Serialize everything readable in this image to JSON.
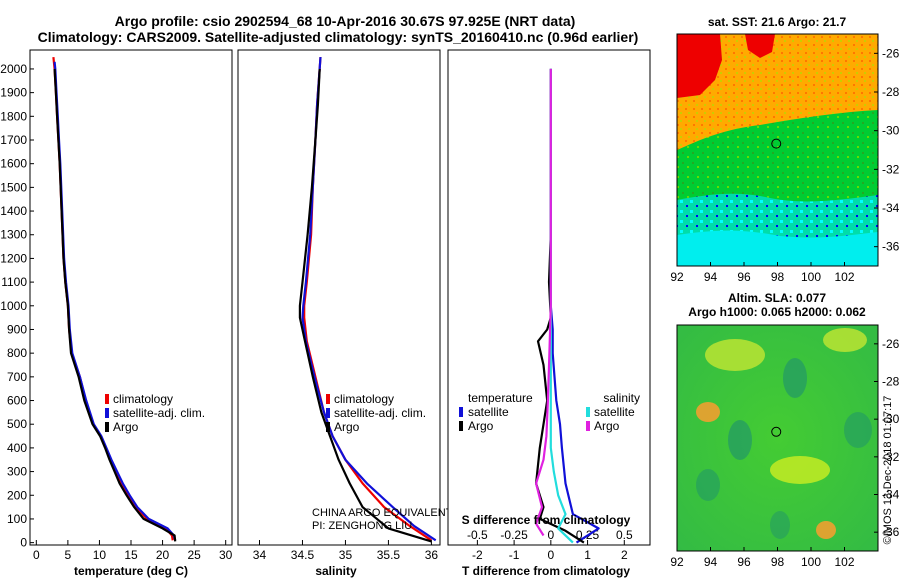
{
  "figure": {
    "title_line1": "Argo profile: csio 2902594_68 10-Apr-2016 30.67S 97.925E (NRT data)",
    "title_line2": "Climatology: CARS2009. Satellite-adjusted climatology: synTS_20160410.nc (0.96d earlier)",
    "credit": "©IMOS 13-Dec-2018 01:07:17",
    "program_line1": "CHINA ARGO EQUIVALENT",
    "program_line2": "PI: ZENGHONG LIU"
  },
  "colors": {
    "climatology": "#ee0000",
    "satellite": "#1010d8",
    "argo": "#000000",
    "sat_salinity": "#22dddd",
    "argo_salinity": "#e020e0"
  },
  "chart_data": [
    {
      "id": "temperature",
      "type": "line",
      "xlabel": "temperature (deg C)",
      "ylabel": "",
      "xlim": [
        -1,
        31
      ],
      "ylim": [
        2080,
        -10
      ],
      "xticks": [
        0,
        5,
        10,
        15,
        20,
        25,
        30
      ],
      "yticks": [
        0,
        100,
        200,
        300,
        400,
        500,
        600,
        700,
        800,
        900,
        1000,
        1100,
        1200,
        1300,
        1400,
        1500,
        1600,
        1700,
        1800,
        1900,
        2000
      ],
      "legend": [
        "climatology",
        "satellite-adj. clim.",
        "Argo"
      ],
      "series": [
        {
          "name": "climatology",
          "color_key": "climatology",
          "x": [
            21.6,
            21.5,
            20.5,
            17.5,
            15.8,
            14.6,
            13.5,
            12.6,
            11.8,
            11.0,
            10.2,
            9.0,
            7.8,
            6.9,
            5.6,
            5.2,
            5.0,
            4.6,
            4.3,
            4.0,
            3.7,
            3.5,
            3.3,
            3.1,
            2.9,
            2.7
          ],
          "y": [
            10,
            30,
            60,
            100,
            150,
            200,
            250,
            300,
            350,
            400,
            450,
            500,
            600,
            700,
            800,
            900,
            1000,
            1100,
            1200,
            1400,
            1600,
            1700,
            1800,
            1900,
            2000,
            2050
          ]
        },
        {
          "name": "satellite-adj. clim.",
          "color_key": "satellite",
          "x": [
            22.0,
            21.8,
            20.8,
            17.8,
            16.0,
            14.8,
            13.7,
            12.8,
            11.9,
            11.1,
            10.3,
            9.1,
            7.9,
            6.9,
            5.7,
            5.3,
            5.1,
            4.7,
            4.4,
            4.1,
            3.8,
            3.6,
            3.4,
            3.2,
            3.0,
            2.9
          ],
          "y": [
            10,
            30,
            60,
            100,
            150,
            200,
            250,
            300,
            350,
            400,
            450,
            500,
            600,
            700,
            800,
            900,
            1000,
            1100,
            1200,
            1400,
            1600,
            1700,
            1800,
            1900,
            2000,
            2030
          ]
        },
        {
          "name": "Argo",
          "color_key": "argo",
          "x": [
            22.0,
            21.9,
            20.0,
            17.0,
            15.5,
            14.3,
            13.2,
            12.4,
            11.6,
            10.9,
            10.1,
            8.9,
            7.6,
            6.7,
            5.5,
            5.2,
            5.0,
            4.6,
            4.3,
            4.0,
            3.7,
            3.5,
            3.3,
            3.1,
            2.9
          ],
          "y": [
            5,
            30,
            60,
            100,
            150,
            200,
            250,
            300,
            350,
            400,
            450,
            500,
            600,
            700,
            800,
            900,
            1000,
            1100,
            1200,
            1400,
            1600,
            1700,
            1800,
            1900,
            2000
          ]
        }
      ]
    },
    {
      "id": "salinity",
      "type": "line",
      "xlabel": "salinity",
      "xlim": [
        33.75,
        36.1
      ],
      "ylim": [
        2080,
        -10
      ],
      "xticks": [
        34,
        34.5,
        35,
        35.5,
        36
      ],
      "legend": [
        "climatology",
        "satellite-adj. clim.",
        "Argo"
      ],
      "series": [
        {
          "name": "climatology",
          "color_key": "climatology",
          "x": [
            36.0,
            35.75,
            35.45,
            35.2,
            35.0,
            34.85,
            34.75,
            34.65,
            34.55,
            34.52,
            34.52,
            34.55,
            34.6,
            34.62,
            34.65,
            34.67,
            34.69,
            34.71
          ],
          "y": [
            10,
            70,
            150,
            250,
            350,
            450,
            550,
            700,
            850,
            950,
            1000,
            1100,
            1300,
            1500,
            1700,
            1850,
            1950,
            2050
          ]
        },
        {
          "name": "satellite-adj. clim.",
          "color_key": "satellite",
          "x": [
            36.05,
            35.8,
            35.55,
            35.25,
            35.0,
            34.85,
            34.75,
            34.64,
            34.54,
            34.5,
            34.51,
            34.54,
            34.59,
            34.62,
            34.65,
            34.67,
            34.69,
            34.71
          ],
          "y": [
            10,
            70,
            150,
            250,
            350,
            450,
            550,
            700,
            850,
            950,
            1000,
            1100,
            1300,
            1500,
            1700,
            1850,
            1950,
            2050
          ]
        },
        {
          "name": "Argo",
          "color_key": "argo",
          "x": [
            36.0,
            35.5,
            35.2,
            35.05,
            34.92,
            34.82,
            34.72,
            34.62,
            34.53,
            34.47,
            34.47,
            34.5,
            34.56,
            34.61,
            34.65,
            34.68,
            34.7
          ],
          "y": [
            5,
            60,
            150,
            250,
            350,
            450,
            550,
            700,
            850,
            950,
            1000,
            1100,
            1300,
            1500,
            1700,
            1850,
            2000
          ]
        }
      ]
    },
    {
      "id": "difference",
      "type": "line",
      "xlabel": "T difference from climatology",
      "xlabel2": "S difference from climatology",
      "xlim": [
        -2.8,
        2.7
      ],
      "ylim": [
        2080,
        -10
      ],
      "xticks": [
        -2,
        -1,
        0,
        1,
        2
      ],
      "xticks2": [
        -0.5,
        -0.25,
        0,
        0.25,
        0.5
      ],
      "x2lim": [
        -0.7,
        0.675
      ],
      "legend_left_title": "temperature",
      "legend_right_title": "salinity",
      "legend_left": [
        "satellite",
        "Argo"
      ],
      "legend_right": [
        "satellite",
        "Argo"
      ],
      "series": [
        {
          "name": "T satellite",
          "color_key": "satellite",
          "axis": "T",
          "x": [
            0.7,
            1.3,
            0.6,
            0.4,
            0.3,
            0.25,
            0.15,
            0.1,
            0.05,
            0.05,
            0.0,
            0.0,
            0.0,
            0.0,
            0.0,
            0.0
          ],
          "y": [
            0,
            60,
            120,
            250,
            400,
            500,
            600,
            700,
            800,
            900,
            1000,
            1200,
            1400,
            1600,
            1800,
            2000
          ]
        },
        {
          "name": "T Argo",
          "color_key": "argo",
          "axis": "T",
          "x": [
            0.9,
            0.4,
            -0.3,
            -0.2,
            -0.4,
            -0.3,
            -0.1,
            -0.2,
            -0.35,
            -0.1,
            0.0,
            -0.05,
            0.0,
            0.0,
            0.0,
            0.0
          ],
          "y": [
            0,
            50,
            100,
            150,
            250,
            400,
            600,
            750,
            850,
            900,
            950,
            1100,
            1300,
            1500,
            1800,
            2000
          ]
        },
        {
          "name": "S satellite",
          "color_key": "sat_salinity",
          "axis": "S",
          "x": [
            0.15,
            0.05,
            0.1,
            0.05,
            0.02,
            0.0,
            0.0,
            0.0,
            0.0,
            0.0,
            0.0,
            0.0
          ],
          "y": [
            0,
            60,
            120,
            200,
            300,
            400,
            600,
            800,
            1000,
            1400,
            1800,
            2000
          ]
        },
        {
          "name": "S Argo",
          "color_key": "argo_salinity",
          "axis": "S",
          "x": [
            -0.05,
            -0.1,
            -0.06,
            -0.1,
            -0.05,
            -0.03,
            -0.02,
            -0.01,
            0.0,
            0.0,
            0.0
          ],
          "y": [
            30,
            80,
            150,
            250,
            350,
            450,
            600,
            800,
            1000,
            1400,
            2000
          ]
        }
      ]
    },
    {
      "id": "sst_map",
      "type": "heatmap",
      "title": "sat. SST: 21.6 Argo: 21.7",
      "xlim": [
        92,
        104
      ],
      "ylim": [
        -37,
        -25
      ],
      "xticks": [
        92,
        94,
        96,
        98,
        100,
        102
      ],
      "yticks": [
        -26,
        -28,
        -30,
        -32,
        -34,
        -36
      ],
      "argo_position": {
        "lon": 97.925,
        "lat": -30.67
      },
      "colors": [
        "#ee0000",
        "#ffaa00",
        "#00cc00",
        "#00ffff",
        "#0000ff"
      ]
    },
    {
      "id": "sla_map",
      "type": "heatmap",
      "title1": "Altim. SLA: 0.077",
      "title2": "Argo h1000: 0.065 h2000: 0.062",
      "xlim": [
        92,
        104
      ],
      "ylim": [
        -37,
        -25
      ],
      "xticks": [
        92,
        94,
        96,
        98,
        100,
        102
      ],
      "yticks": [
        -26,
        -28,
        -30,
        -32,
        -34,
        -36
      ],
      "argo_position": {
        "lon": 97.925,
        "lat": -30.67
      },
      "colors": [
        "#33cc33",
        "#ccee22",
        "#f0a030",
        "#229966"
      ]
    }
  ]
}
